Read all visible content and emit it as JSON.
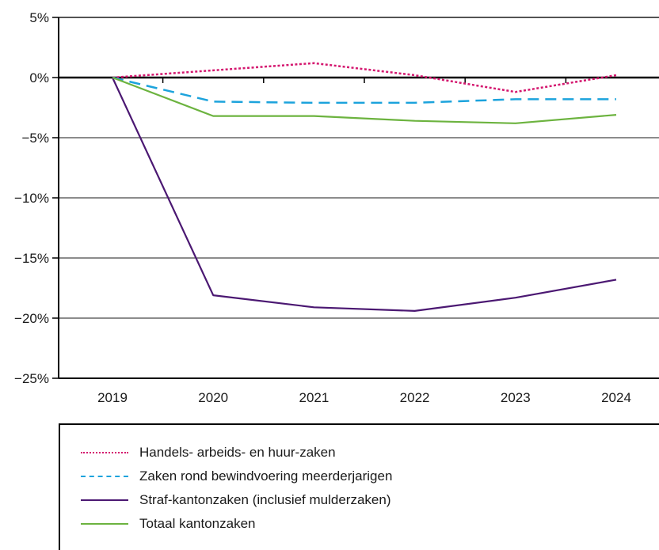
{
  "chart_data": {
    "type": "line",
    "title": "",
    "xlabel": "",
    "ylabel": "",
    "categories": [
      "2019",
      "2020",
      "2021",
      "2022",
      "2023",
      "2024"
    ],
    "ylim": [
      -25,
      5
    ],
    "yticks": [
      5,
      0,
      -5,
      -10,
      -15,
      -20,
      -25
    ],
    "ytick_labels": [
      "5%",
      "0%",
      "−5%",
      "−10%",
      "−15%",
      "−20%",
      "−25%"
    ],
    "grid": true,
    "legend_position": "bottom",
    "series": [
      {
        "name": "Handels- arbeids- en huur-zaken",
        "color": "#d4176f",
        "dash": "dotted",
        "values": [
          0,
          0.6,
          1.2,
          0.2,
          -1.2,
          0.2
        ]
      },
      {
        "name": "Zaken rond bewindvoering meerderjarigen",
        "color": "#1ca3dc",
        "dash": "dashed",
        "values": [
          0,
          -2.0,
          -2.1,
          -2.1,
          -1.8,
          -1.8
        ]
      },
      {
        "name": "Straf-kantonzaken (inclusief mulderzaken)",
        "color": "#4b1872",
        "dash": "solid",
        "values": [
          0,
          -18.1,
          -19.1,
          -19.4,
          -18.3,
          -16.8
        ]
      },
      {
        "name": "Totaal kantonzaken",
        "color": "#6cb33f",
        "dash": "solid",
        "values": [
          0,
          -3.2,
          -3.2,
          -3.6,
          -3.8,
          -3.1
        ]
      }
    ]
  }
}
